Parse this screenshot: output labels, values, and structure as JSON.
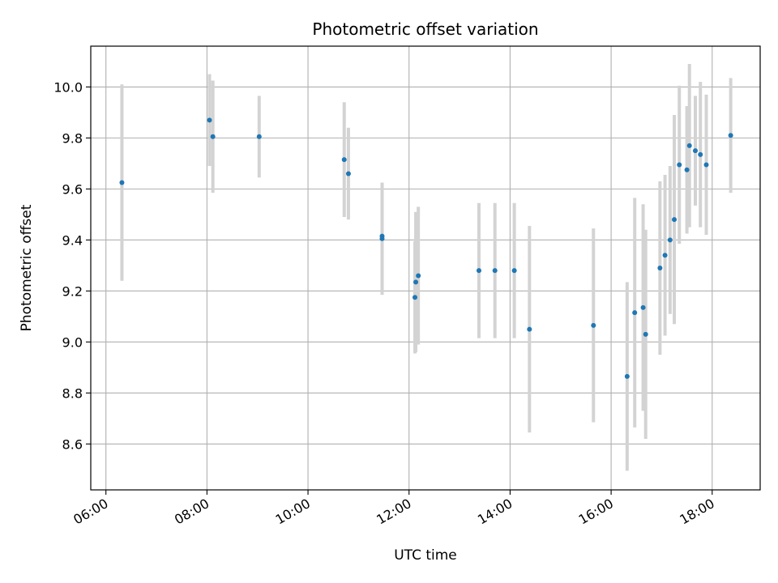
{
  "chart_data": {
    "type": "scatter",
    "title": "Photometric offset variation",
    "xlabel": "UTC time",
    "ylabel": "Photometric offset",
    "x_unit": "hours UTC",
    "xlim": [
      "05:42",
      "18:57"
    ],
    "ylim": [
      8.42,
      10.16
    ],
    "x_ticks": [
      {
        "label": "06:00",
        "value": "06:00"
      },
      {
        "label": "08:00",
        "value": "08:00"
      },
      {
        "label": "10:00",
        "value": "10:00"
      },
      {
        "label": "12:00",
        "value": "12:00"
      },
      {
        "label": "14:00",
        "value": "14:00"
      },
      {
        "label": "16:00",
        "value": "16:00"
      },
      {
        "label": "18:00",
        "value": "18:00"
      }
    ],
    "y_ticks": [
      {
        "label": "8.6",
        "value": 8.6
      },
      {
        "label": "8.8",
        "value": 8.8
      },
      {
        "label": "9.0",
        "value": 9.0
      },
      {
        "label": "9.2",
        "value": 9.2
      },
      {
        "label": "9.4",
        "value": 9.4
      },
      {
        "label": "9.6",
        "value": 9.6
      },
      {
        "label": "9.8",
        "value": 9.8
      },
      {
        "label": "10.0",
        "value": 10.0
      }
    ],
    "grid": true,
    "legend": "none",
    "colors": {
      "points": "#1f77b4",
      "errorbars": "#d3d3d3",
      "grid": "#b0b0b0"
    },
    "points": [
      {
        "x": "06:19",
        "y": 9.625,
        "err": 0.385
      },
      {
        "x": "08:03",
        "y": 9.87,
        "err": 0.18
      },
      {
        "x": "08:07",
        "y": 9.805,
        "err": 0.22
      },
      {
        "x": "09:02",
        "y": 9.805,
        "err": 0.16
      },
      {
        "x": "10:43",
        "y": 9.715,
        "err": 0.225
      },
      {
        "x": "10:48",
        "y": 9.66,
        "err": 0.18
      },
      {
        "x": "11:28",
        "y": 9.405,
        "err": 0.22
      },
      {
        "x": "11:28",
        "y": 9.415,
        "err": 0.21
      },
      {
        "x": "12:07",
        "y": 9.175,
        "err": 0.22
      },
      {
        "x": "12:08",
        "y": 9.235,
        "err": 0.275
      },
      {
        "x": "12:11",
        "y": 9.26,
        "err": 0.27
      },
      {
        "x": "13:23",
        "y": 9.28,
        "err": 0.265
      },
      {
        "x": "13:42",
        "y": 9.28,
        "err": 0.265
      },
      {
        "x": "14:05",
        "y": 9.28,
        "err": 0.265
      },
      {
        "x": "14:23",
        "y": 9.05,
        "err": 0.405
      },
      {
        "x": "15:39",
        "y": 9.065,
        "err": 0.38
      },
      {
        "x": "16:19",
        "y": 8.865,
        "err": 0.37
      },
      {
        "x": "16:28",
        "y": 9.115,
        "err": 0.45
      },
      {
        "x": "16:38",
        "y": 9.135,
        "err": 0.405
      },
      {
        "x": "16:41",
        "y": 9.03,
        "err": 0.41
      },
      {
        "x": "16:58",
        "y": 9.29,
        "err": 0.34
      },
      {
        "x": "17:04",
        "y": 9.34,
        "err": 0.315
      },
      {
        "x": "17:10",
        "y": 9.4,
        "err": 0.29
      },
      {
        "x": "17:15",
        "y": 9.48,
        "err": 0.41
      },
      {
        "x": "17:21",
        "y": 9.695,
        "err": 0.31
      },
      {
        "x": "17:30",
        "y": 9.675,
        "err": 0.25
      },
      {
        "x": "17:33",
        "y": 9.77,
        "err": 0.32
      },
      {
        "x": "17:40",
        "y": 9.75,
        "err": 0.215
      },
      {
        "x": "17:46",
        "y": 9.735,
        "err": 0.285
      },
      {
        "x": "17:53",
        "y": 9.695,
        "err": 0.275
      },
      {
        "x": "18:22",
        "y": 9.81,
        "err": 0.225
      }
    ]
  }
}
